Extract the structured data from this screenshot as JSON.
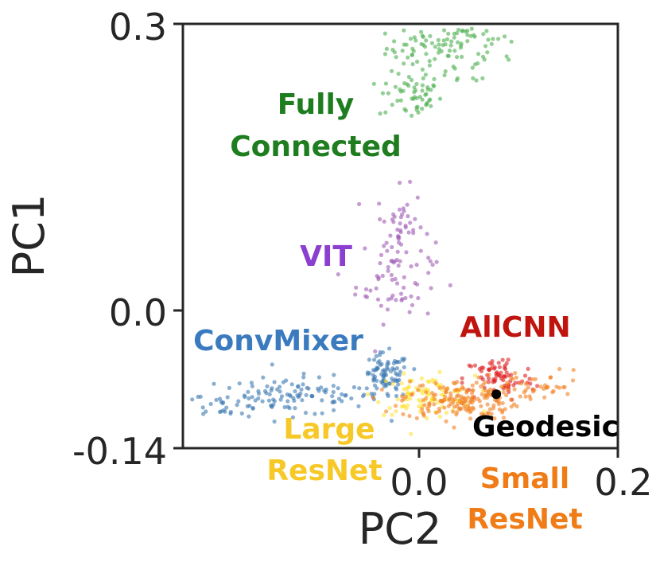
{
  "chart_data": {
    "type": "scatter",
    "title": "",
    "xlabel": "PC2",
    "ylabel": "PC1",
    "xlim": [
      -0.24,
      0.2
    ],
    "ylim": [
      -0.14,
      0.3
    ],
    "x_ticks": [
      {
        "value": 0.0,
        "label": "0.0"
      },
      {
        "value": 0.2,
        "label": "0.2"
      }
    ],
    "y_ticks": [
      {
        "value": 0.3,
        "label": "0.3"
      },
      {
        "value": 0.0,
        "label": "0.0"
      },
      {
        "value": -0.14,
        "label": "-0.14"
      }
    ],
    "grid": false,
    "legend": "none",
    "series": [
      {
        "name": "Fully Connected",
        "label_lines": [
          "Fully",
          "Connected"
        ],
        "color": "#4caf50",
        "label_color": "#1e7d1e",
        "clusters": [
          {
            "center": [
              0.01,
              0.275
            ],
            "spread": [
              0.022,
              0.012
            ],
            "count": 60
          },
          {
            "center": [
              0.05,
              0.285
            ],
            "spread": [
              0.02,
              0.006
            ],
            "count": 25
          },
          {
            "center": [
              -0.01,
              0.225
            ],
            "spread": [
              0.016,
              0.012
            ],
            "count": 55
          },
          {
            "center": [
              0.06,
              0.26
            ],
            "spread": [
              0.025,
              0.015
            ],
            "count": 20
          }
        ]
      },
      {
        "name": "VIT",
        "label_lines": [
          "VIT"
        ],
        "color": "#a05cb4",
        "label_color": "#8a3fd1",
        "clusters": [
          {
            "center": [
              -0.02,
              0.09
            ],
            "spread": [
              0.012,
              0.02
            ],
            "count": 45
          },
          {
            "center": [
              -0.025,
              0.035
            ],
            "spread": [
              0.02,
              0.022
            ],
            "count": 60
          }
        ]
      },
      {
        "name": "ConvMixer",
        "label_lines": [
          "ConvMixer"
        ],
        "color": "#3d7ab3",
        "label_color": "#3a7bbf",
        "clusters": [
          {
            "center": [
              -0.13,
              -0.086
            ],
            "spread": [
              0.045,
              0.01
            ],
            "count": 110
          },
          {
            "center": [
              -0.035,
              -0.066
            ],
            "spread": [
              0.012,
              0.012
            ],
            "count": 90
          },
          {
            "center": [
              -0.2,
              -0.095
            ],
            "spread": [
              0.02,
              0.005
            ],
            "count": 20
          }
        ]
      },
      {
        "name": "Large ResNet",
        "label_lines": [
          "Large",
          "ResNet"
        ],
        "color": "#ffe135",
        "label_color": "#f7c928",
        "clusters": [
          {
            "center": [
              0.005,
              -0.085
            ],
            "spread": [
              0.025,
              0.01
            ],
            "count": 90
          }
        ]
      },
      {
        "name": "AllCNN",
        "label_lines": [
          "AllCNN"
        ],
        "color": "#e02020",
        "label_color": "#c0140f",
        "clusters": [
          {
            "center": [
              0.08,
              -0.068
            ],
            "spread": [
              0.018,
              0.012
            ],
            "count": 80
          }
        ]
      },
      {
        "name": "Small ResNet",
        "label_lines": [
          "Small",
          "ResNet"
        ],
        "color": "#f28020",
        "label_color": "#f07c17",
        "clusters": [
          {
            "center": [
              0.04,
              -0.09
            ],
            "spread": [
              0.03,
              0.01
            ],
            "count": 180
          },
          {
            "center": [
              0.12,
              -0.075
            ],
            "spread": [
              0.025,
              0.008
            ],
            "count": 35
          }
        ]
      },
      {
        "name": "Geodesic",
        "label_lines": [
          "Geodesic"
        ],
        "color": "#000000",
        "label_color": "#000000",
        "points": [
          [
            0.077,
            -0.084
          ]
        ]
      }
    ]
  }
}
